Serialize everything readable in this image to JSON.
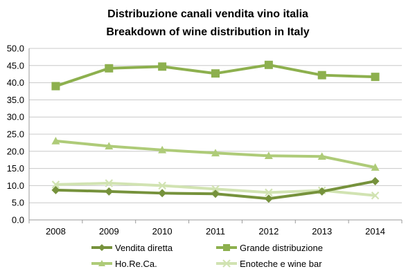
{
  "chart_data": {
    "type": "line",
    "title": "Distribuzione canali vendita vino italia",
    "subtitle": "Breakdown of wine distribution in Italy",
    "xlabel": "",
    "ylabel": "",
    "categories": [
      "2008",
      "2009",
      "2010",
      "2011",
      "2012",
      "2013",
      "2014"
    ],
    "ylim": [
      0,
      50
    ],
    "ytick_step": 5,
    "y_tick_labels": [
      "0.0",
      "5.0",
      "10.0",
      "15.0",
      "20.0",
      "25.0",
      "30.0",
      "35.0",
      "40.0",
      "45.0",
      "50.0"
    ],
    "grid": true,
    "legend_position": "bottom",
    "series": [
      {
        "name": "Vendita diretta",
        "color": "#76923C",
        "marker": "diamond",
        "values": [
          8.7,
          8.3,
          7.8,
          7.6,
          6.2,
          8.3,
          11.3
        ]
      },
      {
        "name": "Grande distribuzione",
        "color": "#8DB04E",
        "marker": "square",
        "values": [
          39.0,
          44.2,
          44.7,
          42.7,
          45.2,
          42.2,
          41.7
        ]
      },
      {
        "name": "Ho.Re.Ca.",
        "color": "#AECB78",
        "marker": "triangle",
        "values": [
          23.0,
          21.5,
          20.4,
          19.5,
          18.7,
          18.5,
          15.3
        ]
      },
      {
        "name": "Enoteche e wine bar",
        "color": "#D1E3B2",
        "marker": "x",
        "values": [
          10.3,
          10.7,
          10.0,
          9.0,
          8.0,
          8.6,
          7.1
        ]
      }
    ]
  }
}
